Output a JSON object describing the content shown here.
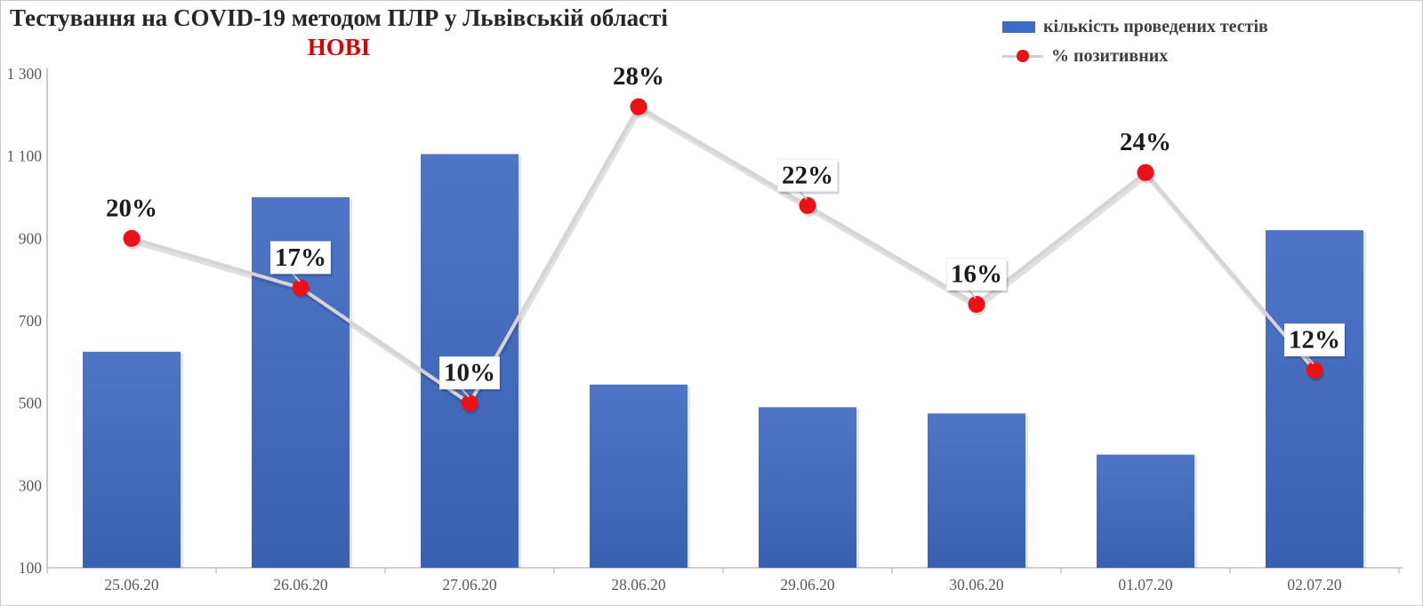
{
  "title": "Тестування на COVID-19 методом ПЛР у Львівській області",
  "subtitle": "НОВІ",
  "legend": {
    "tests_label": "кількість проведених тестів",
    "positive_label": "% позитивних"
  },
  "colors": {
    "subtitle_red": "#dd0000",
    "marker_red": "#ea1117",
    "bar_top": "#4f75c7",
    "bar_bottom": "#3a60b2",
    "legend_swatch_blue": "#3a6bc7",
    "line_gray": "#d6d4d4",
    "axis_gray": "#bfbfbf",
    "tick_text_gray": "#595959",
    "data_label_black": "#1a1a1a"
  },
  "y_axis": {
    "min": 100,
    "max": 1300,
    "tick_values": [
      100,
      300,
      500,
      700,
      900,
      1100,
      1300
    ],
    "tick_labels": [
      "100",
      "300",
      "500",
      "700",
      "900",
      "1 100",
      "1 300"
    ]
  },
  "secondary_axis": {
    "min": 0,
    "max": 30,
    "labels_shown": false
  },
  "chart_data": {
    "type": "bar+line combo",
    "title": "Тестування на COVID-19 методом ПЛР у Львівській області — НОВІ",
    "categories": [
      "25.06.20",
      "26.06.20",
      "27.06.20",
      "28.06.20",
      "29.06.20",
      "30.06.20",
      "01.07.20",
      "02.07.20"
    ],
    "series": [
      {
        "name": "кількість проведених тестів",
        "type": "bar",
        "axis": "primary",
        "values": [
          625,
          1000,
          1105,
          545,
          490,
          475,
          375,
          920
        ]
      },
      {
        "name": "% позитивних",
        "type": "line",
        "axis": "secondary",
        "values": [
          20,
          17,
          10,
          28,
          22,
          16,
          24,
          12
        ],
        "point_labels": [
          "20%",
          "17%",
          "10%",
          "28%",
          "22%",
          "16%",
          "24%",
          "12%"
        ],
        "label_boxed": [
          false,
          true,
          true,
          false,
          true,
          true,
          false,
          true
        ]
      }
    ],
    "ylim": [
      100,
      1300
    ],
    "y2lim": [
      0,
      30
    ],
    "grid": false,
    "legend_position": "top-right"
  }
}
